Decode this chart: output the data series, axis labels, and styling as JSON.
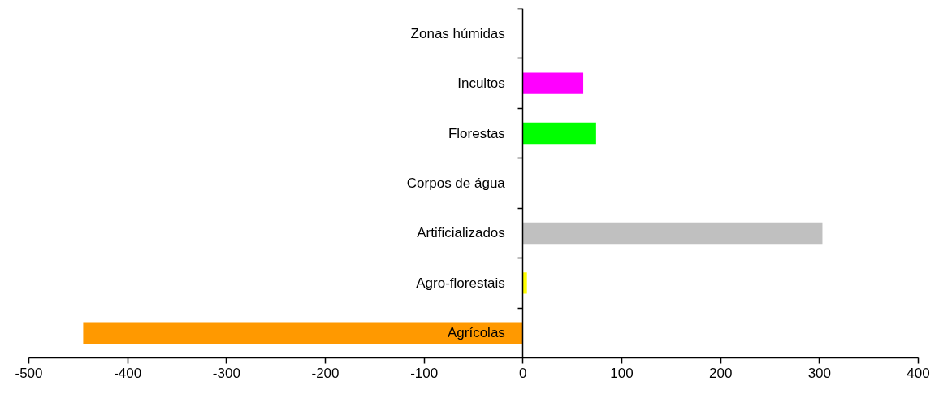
{
  "chart_data": {
    "type": "bar",
    "orientation": "horizontal",
    "categories": [
      "Zonas húmidas",
      "Incultos",
      "Florestas",
      "Corpos de água",
      "Artificializados",
      "Agro-florestais",
      "Agrícolas"
    ],
    "values": [
      0,
      61,
      74,
      0,
      303,
      4,
      -445
    ],
    "colors": [
      null,
      "#ff00ff",
      "#00ff00",
      null,
      "#c0c0c0",
      "#ffff00",
      "#ff9900"
    ],
    "xlim": [
      -500,
      400
    ],
    "xticks": [
      -500,
      -400,
      -300,
      -200,
      -100,
      0,
      100,
      200,
      300,
      400
    ],
    "grid": false
  }
}
